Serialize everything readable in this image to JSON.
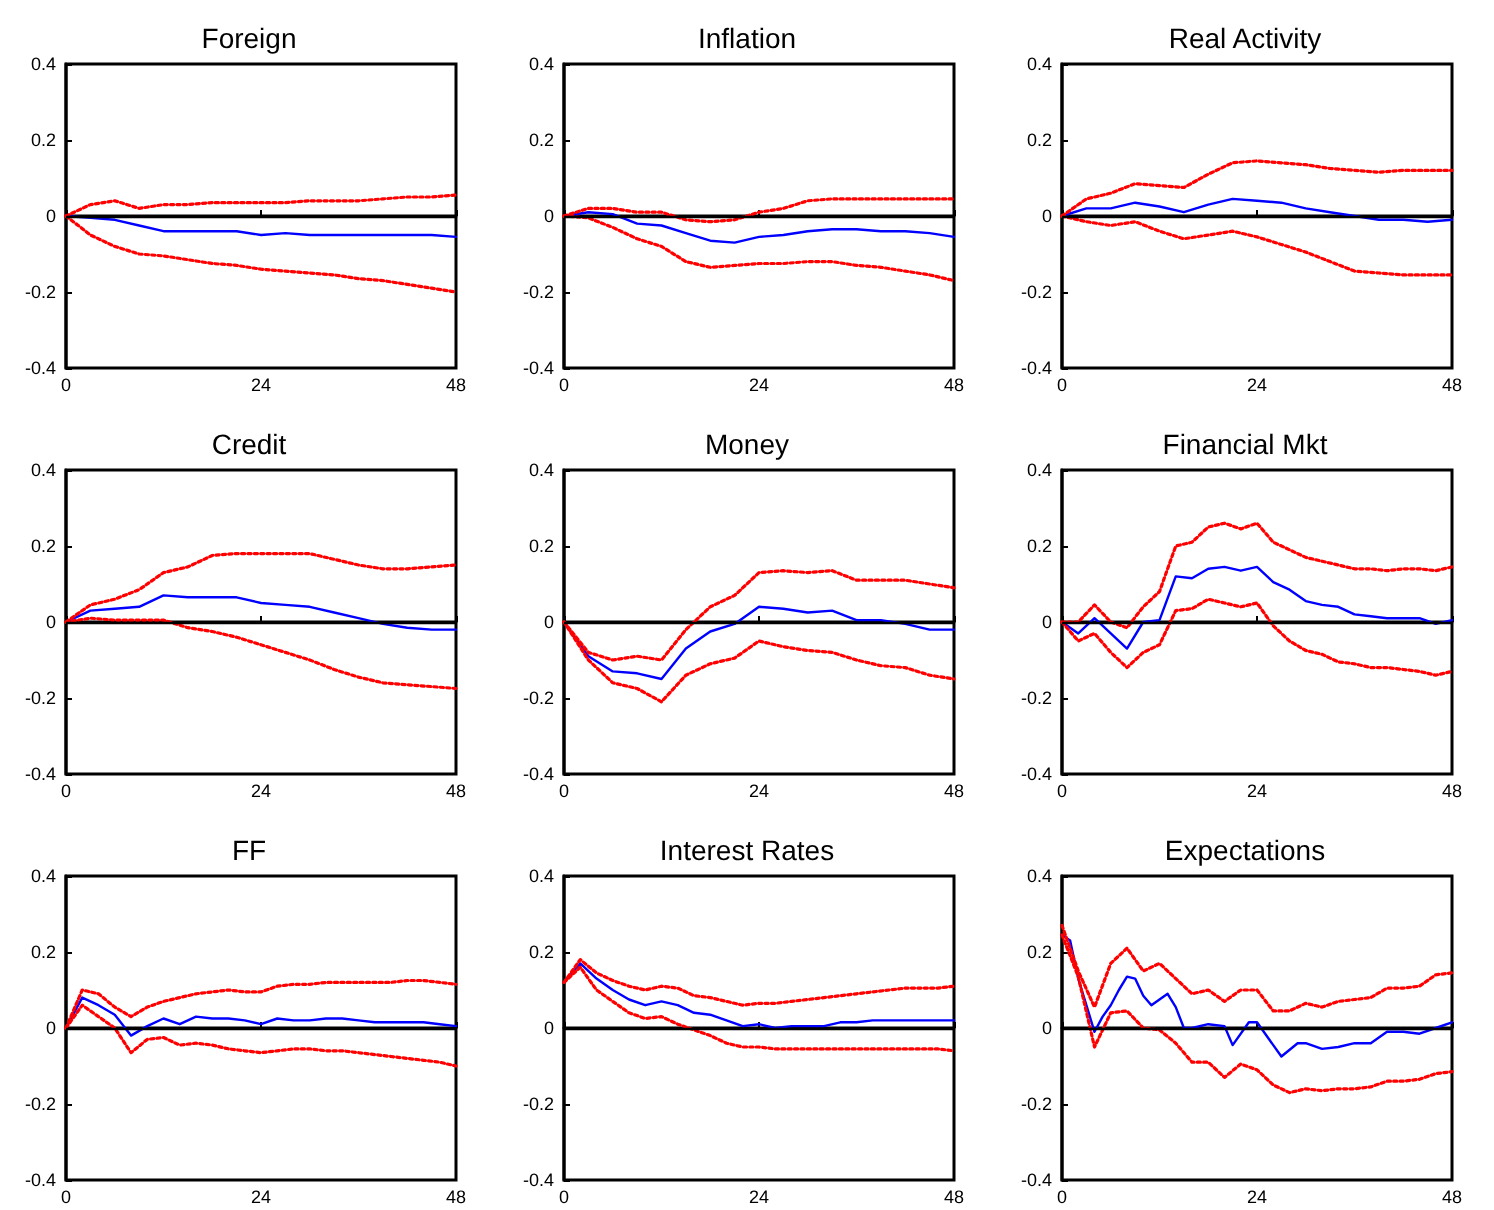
{
  "chart_data": [
    {
      "type": "line",
      "title": "Foreign",
      "x": [
        0,
        3,
        6,
        9,
        12,
        15,
        18,
        21,
        24,
        27,
        30,
        33,
        36,
        39,
        42,
        45,
        48
      ],
      "xlim": [
        0,
        48
      ],
      "xticks": [
        0,
        24,
        48
      ],
      "ylim": [
        -0.4,
        0.4
      ],
      "yticks": [
        -0.4,
        -0.2,
        0,
        0.2,
        0.4
      ],
      "grid": false,
      "ref_lines": [
        {
          "axis": "y",
          "value": 0,
          "color": "#000000"
        }
      ],
      "series": [
        {
          "color": "#0000ff",
          "line_style": "solid",
          "values": [
            0,
            -0.005,
            -0.01,
            -0.025,
            -0.04,
            -0.04,
            -0.04,
            -0.04,
            -0.05,
            -0.045,
            -0.05,
            -0.05,
            -0.05,
            -0.05,
            -0.05,
            -0.05,
            -0.055
          ]
        },
        {
          "color": "#ff0000",
          "line_style": "dotted",
          "values": [
            0,
            0.03,
            0.04,
            0.02,
            0.03,
            0.03,
            0.035,
            0.035,
            0.035,
            0.035,
            0.04,
            0.04,
            0.04,
            0.045,
            0.05,
            0.05,
            0.055
          ]
        },
        {
          "color": "#ff0000",
          "line_style": "dotted",
          "values": [
            0,
            -0.05,
            -0.08,
            -0.1,
            -0.105,
            -0.115,
            -0.125,
            -0.13,
            -0.14,
            -0.145,
            -0.15,
            -0.155,
            -0.165,
            -0.17,
            -0.18,
            -0.19,
            -0.2
          ]
        }
      ]
    },
    {
      "type": "line",
      "title": "Inflation",
      "x": [
        0,
        3,
        6,
        9,
        12,
        15,
        18,
        21,
        24,
        27,
        30,
        33,
        36,
        39,
        42,
        45,
        48
      ],
      "xlim": [
        0,
        48
      ],
      "xticks": [
        0,
        24,
        48
      ],
      "ylim": [
        -0.4,
        0.4
      ],
      "yticks": [
        -0.4,
        -0.2,
        0,
        0.2,
        0.4
      ],
      "grid": false,
      "ref_lines": [
        {
          "axis": "y",
          "value": 0,
          "color": "#000000"
        }
      ],
      "series": [
        {
          "color": "#0000ff",
          "line_style": "solid",
          "values": [
            0,
            0.01,
            0.005,
            -0.02,
            -0.025,
            -0.045,
            -0.065,
            -0.07,
            -0.055,
            -0.05,
            -0.04,
            -0.035,
            -0.035,
            -0.04,
            -0.04,
            -0.045,
            -0.055
          ]
        },
        {
          "color": "#ff0000",
          "line_style": "dotted",
          "values": [
            0,
            0.02,
            0.02,
            0.01,
            0.01,
            -0.01,
            -0.015,
            -0.01,
            0.01,
            0.02,
            0.04,
            0.045,
            0.045,
            0.045,
            0.045,
            0.045,
            0.045
          ]
        },
        {
          "color": "#ff0000",
          "line_style": "dotted",
          "values": [
            0,
            -0.005,
            -0.03,
            -0.06,
            -0.08,
            -0.12,
            -0.135,
            -0.13,
            -0.125,
            -0.125,
            -0.12,
            -0.12,
            -0.13,
            -0.135,
            -0.145,
            -0.155,
            -0.17
          ]
        }
      ]
    },
    {
      "type": "line",
      "title": "Real Activity",
      "x": [
        0,
        3,
        6,
        9,
        12,
        15,
        18,
        21,
        24,
        27,
        30,
        33,
        36,
        39,
        42,
        45,
        48
      ],
      "xlim": [
        0,
        48
      ],
      "xticks": [
        0,
        24,
        48
      ],
      "ylim": [
        -0.4,
        0.4
      ],
      "yticks": [
        -0.4,
        -0.2,
        0,
        0.2,
        0.4
      ],
      "grid": false,
      "ref_lines": [
        {
          "axis": "y",
          "value": 0,
          "color": "#000000"
        }
      ],
      "series": [
        {
          "color": "#0000ff",
          "line_style": "solid",
          "values": [
            0,
            0.02,
            0.02,
            0.035,
            0.025,
            0.01,
            0.03,
            0.045,
            0.04,
            0.035,
            0.02,
            0.01,
            0,
            -0.01,
            -0.01,
            -0.015,
            -0.01
          ]
        },
        {
          "color": "#ff0000",
          "line_style": "dotted",
          "values": [
            0,
            0.045,
            0.06,
            0.085,
            0.08,
            0.075,
            0.11,
            0.14,
            0.145,
            0.14,
            0.135,
            0.125,
            0.12,
            0.115,
            0.12,
            0.12,
            0.12
          ]
        },
        {
          "color": "#ff0000",
          "line_style": "dotted",
          "values": [
            0,
            -0.015,
            -0.025,
            -0.015,
            -0.04,
            -0.06,
            -0.05,
            -0.04,
            -0.055,
            -0.075,
            -0.095,
            -0.12,
            -0.145,
            -0.15,
            -0.155,
            -0.155,
            -0.155
          ]
        }
      ]
    },
    {
      "type": "line",
      "title": "Credit",
      "x": [
        0,
        3,
        6,
        9,
        12,
        15,
        18,
        21,
        24,
        27,
        30,
        33,
        36,
        39,
        42,
        45,
        48
      ],
      "xlim": [
        0,
        48
      ],
      "xticks": [
        0,
        24,
        48
      ],
      "ylim": [
        -0.4,
        0.4
      ],
      "yticks": [
        -0.4,
        -0.2,
        0,
        0.2,
        0.4
      ],
      "grid": false,
      "ref_lines": [
        {
          "axis": "y",
          "value": 0,
          "color": "#000000"
        }
      ],
      "series": [
        {
          "color": "#0000ff",
          "line_style": "solid",
          "values": [
            0,
            0.03,
            0.035,
            0.04,
            0.07,
            0.065,
            0.065,
            0.065,
            0.05,
            0.045,
            0.04,
            0.025,
            0.01,
            -0.005,
            -0.015,
            -0.02,
            -0.02
          ]
        },
        {
          "color": "#ff0000",
          "line_style": "dotted",
          "values": [
            0,
            0.045,
            0.06,
            0.085,
            0.13,
            0.145,
            0.175,
            0.18,
            0.18,
            0.18,
            0.18,
            0.165,
            0.15,
            0.14,
            0.14,
            0.145,
            0.15
          ]
        },
        {
          "color": "#ff0000",
          "line_style": "dotted",
          "values": [
            0,
            0.01,
            0.005,
            0.005,
            0.005,
            -0.015,
            -0.025,
            -0.04,
            -0.06,
            -0.08,
            -0.1,
            -0.125,
            -0.145,
            -0.16,
            -0.165,
            -0.17,
            -0.175
          ]
        }
      ]
    },
    {
      "type": "line",
      "title": "Money",
      "x": [
        0,
        3,
        6,
        9,
        12,
        15,
        18,
        21,
        24,
        27,
        30,
        33,
        36,
        39,
        42,
        45,
        48
      ],
      "xlim": [
        0,
        48
      ],
      "xticks": [
        0,
        24,
        48
      ],
      "ylim": [
        -0.4,
        0.4
      ],
      "yticks": [
        -0.4,
        -0.2,
        0,
        0.2,
        0.4
      ],
      "grid": false,
      "ref_lines": [
        {
          "axis": "y",
          "value": 0,
          "color": "#000000"
        }
      ],
      "series": [
        {
          "color": "#0000ff",
          "line_style": "solid",
          "values": [
            0,
            -0.09,
            -0.13,
            -0.135,
            -0.15,
            -0.07,
            -0.025,
            -0.005,
            0.04,
            0.035,
            0.025,
            0.03,
            0.005,
            0.005,
            -0.005,
            -0.02,
            -0.02
          ]
        },
        {
          "color": "#ff0000",
          "line_style": "dotted",
          "values": [
            0,
            -0.08,
            -0.1,
            -0.09,
            -0.1,
            -0.02,
            0.04,
            0.07,
            0.13,
            0.135,
            0.13,
            0.135,
            0.11,
            0.11,
            0.11,
            0.1,
            0.09
          ]
        },
        {
          "color": "#ff0000",
          "line_style": "dotted",
          "values": [
            0,
            -0.1,
            -0.16,
            -0.175,
            -0.21,
            -0.14,
            -0.11,
            -0.095,
            -0.05,
            -0.065,
            -0.075,
            -0.08,
            -0.1,
            -0.115,
            -0.12,
            -0.14,
            -0.15
          ]
        }
      ]
    },
    {
      "type": "line",
      "title": "Financial Mkt",
      "x": [
        0,
        2,
        4,
        6,
        8,
        10,
        12,
        14,
        16,
        18,
        20,
        22,
        24,
        26,
        28,
        30,
        32,
        34,
        36,
        38,
        40,
        42,
        44,
        46,
        48
      ],
      "xlim": [
        0,
        48
      ],
      "xticks": [
        0,
        24,
        48
      ],
      "ylim": [
        -0.4,
        0.4
      ],
      "yticks": [
        -0.4,
        -0.2,
        0,
        0.2,
        0.4
      ],
      "grid": false,
      "ref_lines": [
        {
          "axis": "y",
          "value": 0,
          "color": "#000000"
        }
      ],
      "series": [
        {
          "color": "#0000ff",
          "line_style": "solid",
          "values": [
            0,
            -0.03,
            0.01,
            -0.03,
            -0.07,
            0,
            0.005,
            0.12,
            0.115,
            0.14,
            0.145,
            0.135,
            0.145,
            0.105,
            0.085,
            0.055,
            0.045,
            0.04,
            0.02,
            0.015,
            0.01,
            0.01,
            0.01,
            -0.005,
            0.005
          ]
        },
        {
          "color": "#ff0000",
          "line_style": "dotted",
          "values": [
            0,
            0,
            0.045,
            0,
            -0.015,
            0.04,
            0.08,
            0.2,
            0.21,
            0.25,
            0.26,
            0.245,
            0.26,
            0.21,
            0.19,
            0.17,
            0.16,
            0.15,
            0.14,
            0.14,
            0.135,
            0.14,
            0.14,
            0.135,
            0.145
          ]
        },
        {
          "color": "#ff0000",
          "line_style": "dotted",
          "values": [
            0,
            -0.05,
            -0.03,
            -0.08,
            -0.12,
            -0.08,
            -0.06,
            0.03,
            0.035,
            0.06,
            0.05,
            0.04,
            0.05,
            -0.01,
            -0.05,
            -0.075,
            -0.085,
            -0.105,
            -0.11,
            -0.12,
            -0.12,
            -0.125,
            -0.13,
            -0.14,
            -0.13
          ]
        }
      ]
    },
    {
      "type": "line",
      "title": "FF",
      "x": [
        0,
        2,
        4,
        6,
        8,
        10,
        12,
        14,
        16,
        18,
        20,
        22,
        24,
        26,
        28,
        30,
        32,
        34,
        36,
        38,
        40,
        42,
        44,
        46,
        48
      ],
      "xlim": [
        0,
        48
      ],
      "xticks": [
        0,
        24,
        48
      ],
      "ylim": [
        -0.4,
        0.4
      ],
      "yticks": [
        -0.4,
        -0.2,
        0,
        0.2,
        0.4
      ],
      "grid": false,
      "ref_lines": [
        {
          "axis": "y",
          "value": 0,
          "color": "#000000"
        }
      ],
      "series": [
        {
          "color": "#0000ff",
          "line_style": "solid",
          "values": [
            0,
            0.08,
            0.06,
            0.035,
            -0.02,
            0.005,
            0.025,
            0.01,
            0.03,
            0.025,
            0.025,
            0.02,
            0.01,
            0.025,
            0.02,
            0.02,
            0.025,
            0.025,
            0.02,
            0.015,
            0.015,
            0.015,
            0.015,
            0.01,
            0.005
          ]
        },
        {
          "color": "#ff0000",
          "line_style": "dotted",
          "values": [
            0,
            0.1,
            0.09,
            0.055,
            0.03,
            0.055,
            0.07,
            0.08,
            0.09,
            0.095,
            0.1,
            0.095,
            0.095,
            0.11,
            0.115,
            0.115,
            0.12,
            0.12,
            0.12,
            0.12,
            0.12,
            0.125,
            0.125,
            0.12,
            0.115
          ]
        },
        {
          "color": "#ff0000",
          "line_style": "dotted",
          "values": [
            0,
            0.06,
            0.03,
            0,
            -0.065,
            -0.03,
            -0.025,
            -0.045,
            -0.04,
            -0.045,
            -0.055,
            -0.06,
            -0.065,
            -0.06,
            -0.055,
            -0.055,
            -0.06,
            -0.06,
            -0.065,
            -0.07,
            -0.075,
            -0.08,
            -0.085,
            -0.09,
            -0.1
          ]
        }
      ]
    },
    {
      "type": "line",
      "title": "Interest Rates",
      "x": [
        0,
        2,
        4,
        6,
        8,
        10,
        12,
        14,
        16,
        18,
        20,
        22,
        24,
        26,
        28,
        30,
        32,
        34,
        36,
        38,
        40,
        42,
        44,
        46,
        48
      ],
      "xlim": [
        0,
        48
      ],
      "xticks": [
        0,
        24,
        48
      ],
      "ylim": [
        -0.4,
        0.4
      ],
      "yticks": [
        -0.4,
        -0.2,
        0,
        0.2,
        0.4
      ],
      "grid": false,
      "ref_lines": [
        {
          "axis": "y",
          "value": 0,
          "color": "#000000"
        }
      ],
      "series": [
        {
          "color": "#0000ff",
          "line_style": "solid",
          "values": [
            0.12,
            0.17,
            0.13,
            0.1,
            0.075,
            0.06,
            0.07,
            0.06,
            0.04,
            0.035,
            0.02,
            0.005,
            0.01,
            0,
            0.005,
            0.005,
            0.005,
            0.015,
            0.015,
            0.02,
            0.02,
            0.02,
            0.02,
            0.02,
            0.02
          ]
        },
        {
          "color": "#ff0000",
          "line_style": "dotted",
          "values": [
            0.12,
            0.18,
            0.145,
            0.125,
            0.11,
            0.1,
            0.11,
            0.105,
            0.085,
            0.08,
            0.07,
            0.06,
            0.065,
            0.065,
            0.07,
            0.075,
            0.08,
            0.085,
            0.09,
            0.095,
            0.1,
            0.105,
            0.105,
            0.105,
            0.11
          ]
        },
        {
          "color": "#ff0000",
          "line_style": "dotted",
          "values": [
            0.12,
            0.16,
            0.1,
            0.07,
            0.04,
            0.025,
            0.03,
            0.01,
            -0.005,
            -0.02,
            -0.04,
            -0.05,
            -0.05,
            -0.055,
            -0.055,
            -0.055,
            -0.055,
            -0.055,
            -0.055,
            -0.055,
            -0.055,
            -0.055,
            -0.055,
            -0.055,
            -0.06
          ]
        }
      ]
    },
    {
      "type": "line",
      "title": "Expectations",
      "x": [
        0,
        2,
        4,
        6,
        8,
        10,
        12,
        14,
        16,
        18,
        20,
        22,
        24,
        26,
        28,
        30,
        32,
        34,
        36,
        38,
        40,
        42,
        44,
        46,
        48
      ],
      "xlim": [
        0,
        48
      ],
      "xticks": [
        0,
        24,
        48
      ],
      "ylim": [
        -0.4,
        0.4
      ],
      "yticks": [
        -0.4,
        -0.2,
        0,
        0.2,
        0.4
      ],
      "grid": false,
      "ref_lines": [
        {
          "axis": "y",
          "value": 0,
          "color": "#000000"
        }
      ],
      "series": [
        {
          "color": "#0000ff",
          "line_style": "solid",
          "x": [
            0,
            1,
            2,
            3,
            4,
            5,
            6,
            7,
            8,
            9,
            10,
            11,
            12,
            13,
            14,
            15,
            16,
            18,
            20,
            21,
            23,
            24,
            26,
            27,
            29,
            30,
            32,
            34,
            36,
            38,
            40,
            42,
            44,
            46,
            48
          ],
          "values": [
            0.245,
            0.23,
            0.13,
            0.06,
            -0.01,
            0.03,
            0.06,
            0.1,
            0.135,
            0.13,
            0.085,
            0.06,
            0.075,
            0.09,
            0.055,
            0,
            0,
            0.01,
            0.005,
            -0.045,
            0.015,
            0.015,
            -0.045,
            -0.075,
            -0.04,
            -0.04,
            -0.055,
            -0.05,
            -0.04,
            -0.04,
            -0.01,
            -0.01,
            -0.015,
            0,
            0.015
          ]
        },
        {
          "color": "#ff0000",
          "line_style": "dotted",
          "values": [
            0.27,
            0.15,
            0.055,
            0.17,
            0.21,
            0.15,
            0.17,
            0.13,
            0.09,
            0.1,
            0.07,
            0.1,
            0.1,
            0.045,
            0.045,
            0.065,
            0.055,
            0.07,
            0.075,
            0.08,
            0.105,
            0.105,
            0.11,
            0.14,
            0.145
          ]
        },
        {
          "color": "#ff0000",
          "line_style": "dotted",
          "values": [
            0.245,
            0.135,
            -0.05,
            0.04,
            0.045,
            0,
            -0.005,
            -0.04,
            -0.09,
            -0.09,
            -0.13,
            -0.095,
            -0.11,
            -0.15,
            -0.17,
            -0.16,
            -0.165,
            -0.16,
            -0.16,
            -0.155,
            -0.14,
            -0.14,
            -0.135,
            -0.12,
            -0.115
          ]
        }
      ]
    }
  ]
}
